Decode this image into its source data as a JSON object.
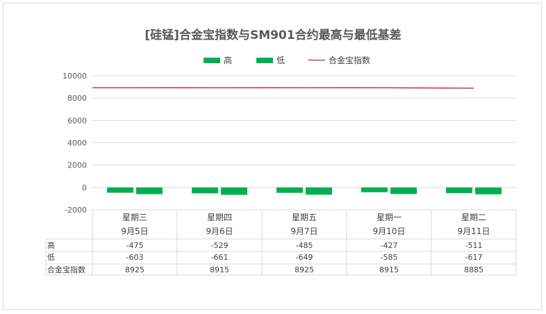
{
  "chart_data": {
    "type": "bar",
    "title": "[硅锰]合金宝指数与SM901合约最高与最低基差",
    "categories": [
      "星期三",
      "星期四",
      "星期五",
      "星期一",
      "星期二"
    ],
    "dates": [
      "9月5日",
      "9月6日",
      "9月7日",
      "9月10日",
      "9月11日"
    ],
    "series": [
      {
        "name": "高",
        "values": [
          -475,
          -529,
          -485,
          -427,
          -511
        ],
        "color": "#00b050",
        "kind": "bar"
      },
      {
        "name": "低",
        "values": [
          -603,
          -661,
          -649,
          -585,
          -617
        ],
        "color": "#00b050",
        "kind": "bar"
      },
      {
        "name": "合金宝指数",
        "values": [
          8925,
          8915,
          8925,
          8915,
          8885
        ],
        "color": "#c00000",
        "kind": "line"
      }
    ],
    "ylim": [
      -2000,
      10000
    ],
    "yticks": [
      "10000",
      "8000",
      "6000",
      "4000",
      "2000",
      "0",
      "-2000"
    ],
    "legend": "top",
    "grid": true,
    "data_table": true
  }
}
